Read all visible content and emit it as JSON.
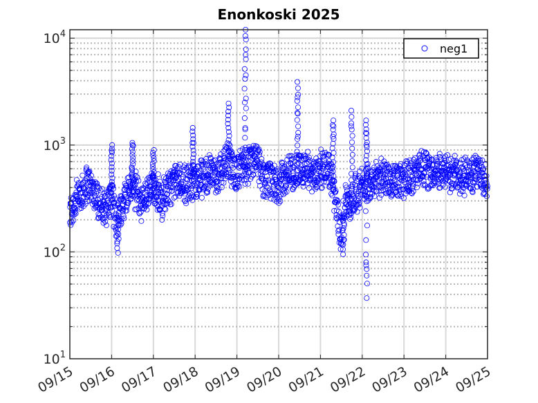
{
  "chart_data": {
    "type": "scatter",
    "title": "Enonkoski 2025",
    "xlabel": "",
    "ylabel": "",
    "y_scale": "log",
    "xlim": [
      "2025-09-15",
      "2025-09-25"
    ],
    "ylim": [
      10,
      12000
    ],
    "x_ticks": [
      "09/15",
      "09/16",
      "09/17",
      "09/18",
      "09/19",
      "09/20",
      "09/21",
      "09/22",
      "09/23",
      "09/24",
      "09/25"
    ],
    "y_ticks": [
      {
        "value": 10,
        "base": "10",
        "exp": "1"
      },
      {
        "value": 100,
        "base": "10",
        "exp": "2"
      },
      {
        "value": 1000,
        "base": "10",
        "exp": "3"
      },
      {
        "value": 10000,
        "base": "10",
        "exp": "4"
      }
    ],
    "grid": true,
    "legend_position": "top-right",
    "marker": "open circle",
    "series_color": "#0000ff",
    "series": [
      {
        "name": "neg1",
        "x_day": [
          0.0,
          0.1,
          0.2,
          0.3,
          0.4,
          0.5,
          0.6,
          0.7,
          0.8,
          0.9,
          1.0,
          1.1,
          1.2,
          1.3,
          1.4,
          1.5,
          1.6,
          1.7,
          1.8,
          1.9,
          2.0,
          2.1,
          2.2,
          2.3,
          2.4,
          2.5,
          2.6,
          2.7,
          2.8,
          2.9,
          3.0,
          3.1,
          3.2,
          3.3,
          3.4,
          3.5,
          3.6,
          3.7,
          3.8,
          3.9,
          4.0,
          4.1,
          4.2,
          4.3,
          4.4,
          4.5,
          4.6,
          4.7,
          4.8,
          4.9,
          5.0,
          5.1,
          5.2,
          5.3,
          5.4,
          5.5,
          5.6,
          5.7,
          5.8,
          5.9,
          6.0,
          6.1,
          6.2,
          6.3,
          6.4,
          6.5,
          6.6,
          6.7,
          6.8,
          6.9,
          7.0,
          7.1,
          7.2,
          7.3,
          7.4,
          7.5,
          7.6,
          7.7,
          7.8,
          7.9,
          8.0,
          8.1,
          8.2,
          8.3,
          8.4,
          8.5,
          8.6,
          8.7,
          8.8,
          8.9,
          9.0,
          9.1,
          9.2,
          9.3,
          9.4,
          9.5,
          9.6,
          9.7,
          9.8,
          9.9,
          10.0
        ],
        "y_baseline": [
          220,
          280,
          330,
          370,
          450,
          400,
          350,
          300,
          240,
          280,
          330,
          200,
          240,
          300,
          380,
          420,
          360,
          280,
          320,
          350,
          390,
          380,
          300,
          360,
          400,
          440,
          470,
          460,
          420,
          450,
          480,
          470,
          500,
          520,
          550,
          520,
          560,
          620,
          720,
          600,
          560,
          600,
          620,
          650,
          700,
          680,
          500,
          470,
          450,
          440,
          430,
          480,
          520,
          580,
          550,
          600,
          600,
          560,
          540,
          560,
          600,
          580,
          640,
          420,
          220,
          150,
          320,
          280,
          350,
          360,
          420,
          450,
          480,
          470,
          460,
          500,
          480,
          460,
          470,
          480,
          500,
          520,
          530,
          560,
          580,
          600,
          590,
          560,
          570,
          580,
          560,
          540,
          550,
          500,
          490,
          520,
          530,
          560,
          540,
          500,
          480
        ],
        "spikes": [
          {
            "x": 4.2,
            "y": [
              900,
              1400,
              2500,
              4500,
              7000,
              10500,
              12000
            ]
          },
          {
            "x": 5.45,
            "y": [
              1200,
              2000,
              2800,
              3900
            ]
          },
          {
            "x": 6.3,
            "y": [
              1200,
              1500,
              1700
            ]
          },
          {
            "x": 6.75,
            "y": [
              1500,
              2100
            ]
          },
          {
            "x": 7.1,
            "y": [
              1000,
              1300,
              1700
            ]
          },
          {
            "x": 2.95,
            "y": [
              1050,
              1450
            ]
          },
          {
            "x": 1.0,
            "y": [
              880,
              1000
            ]
          },
          {
            "x": 1.5,
            "y": [
              1000,
              1050
            ]
          },
          {
            "x": 2.0,
            "y": [
              900
            ]
          },
          {
            "x": 3.8,
            "y": [
              2450
            ]
          },
          {
            "x": 6.55,
            "y": [
              95,
              130
            ]
          },
          {
            "x": 7.1,
            "y": [
              37,
              60,
              75,
              80
            ]
          },
          {
            "x": 1.15,
            "y": [
              98,
              125
            ]
          }
        ]
      }
    ]
  }
}
